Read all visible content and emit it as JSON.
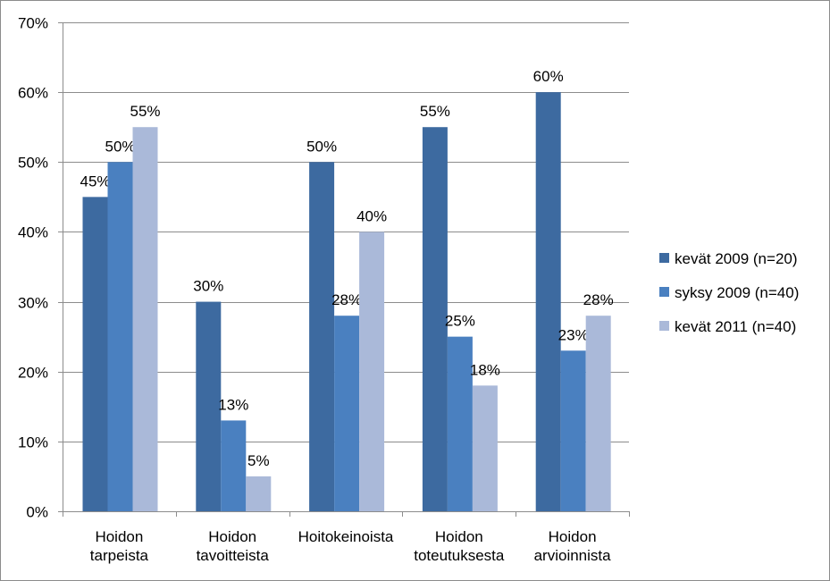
{
  "chart_data": {
    "type": "bar",
    "categories": [
      [
        "Hoidon",
        "tarpeista"
      ],
      [
        "Hoidon",
        "tavoitteista"
      ],
      [
        "Hoitokeinoista"
      ],
      [
        "Hoidon",
        "toteutuksesta"
      ],
      [
        "Hoidon",
        "arvioinnista"
      ]
    ],
    "series": [
      {
        "name": "kevät 2009 (n=20)",
        "color": "#3d6aa0",
        "values": [
          45,
          30,
          50,
          55,
          60
        ],
        "labels": [
          "45%",
          "30%",
          "50%",
          "55%",
          "60%"
        ]
      },
      {
        "name": "syksy 2009 (n=40)",
        "color": "#4a80c0",
        "values": [
          50,
          13,
          28,
          25,
          23
        ],
        "labels": [
          "50%",
          "13%",
          "28%",
          "25%",
          "23%"
        ]
      },
      {
        "name": "kevät 2011 (n=40)",
        "color": "#aab9d9",
        "values": [
          55,
          5,
          40,
          18,
          28
        ],
        "labels": [
          "55%",
          "5%",
          "40%",
          "18%",
          "28%"
        ]
      }
    ],
    "ylim": [
      0,
      70
    ],
    "yticks": [
      0,
      10,
      20,
      30,
      40,
      50,
      60,
      70
    ],
    "ytick_labels": [
      "0%",
      "10%",
      "20%",
      "30%",
      "40%",
      "50%",
      "60%",
      "70%"
    ],
    "grid": true,
    "legend_position": "right",
    "title": "",
    "xlabel": "",
    "ylabel": ""
  }
}
